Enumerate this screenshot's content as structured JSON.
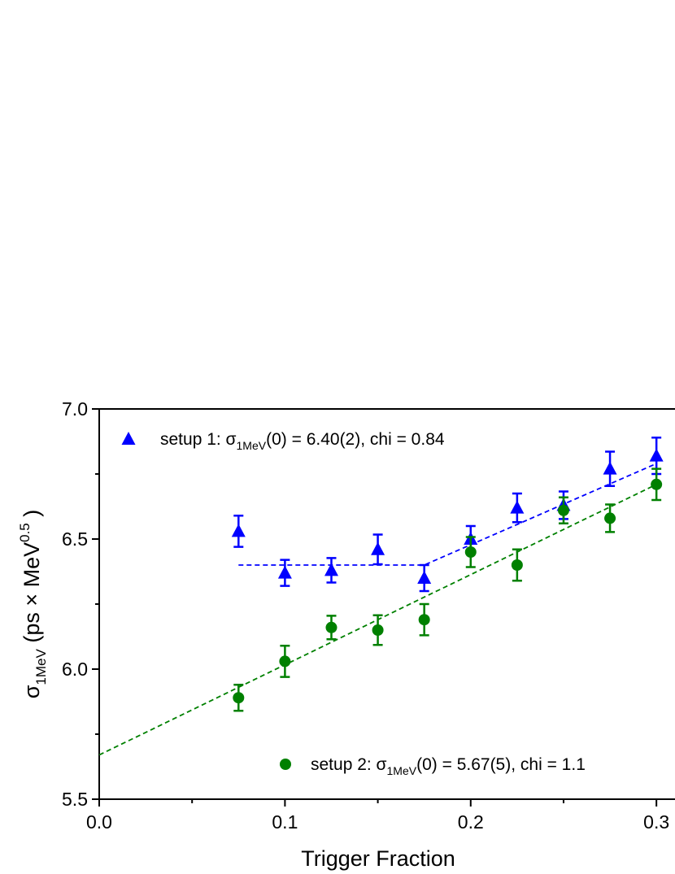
{
  "chart_data": {
    "type": "scatter",
    "xlabel": "Trigger Fraction",
    "ylabel": [
      "σ",
      "1MeV",
      " (ps × MeV",
      "0.5",
      " )"
    ],
    "xlim": [
      0,
      0.31
    ],
    "ylim": [
      5.5,
      7.0
    ],
    "xticks": [
      {
        "value": 0,
        "label": "0.0"
      },
      0.1,
      0.2,
      0.3
    ],
    "yticks": [
      5.5,
      {
        "value": 6,
        "label": "6.0"
      },
      6.5,
      {
        "value": 7,
        "label": "7.0"
      }
    ],
    "xminor": [
      0.05,
      0.15,
      0.25
    ],
    "yminor": [
      5.75,
      6.25,
      6.75
    ],
    "series": [
      {
        "name": [
          "setup 1: σ",
          "1MeV",
          "(0) = 6.40(2),  chi = 0.84"
        ],
        "color": "#0000ff",
        "marker": "triangle",
        "x": [
          0.075,
          0.1,
          0.125,
          0.15,
          0.175,
          0.2,
          0.225,
          0.25,
          0.275,
          0.3
        ],
        "values": [
          6.53,
          6.37,
          6.38,
          6.46,
          6.35,
          6.5,
          6.62,
          6.63,
          6.77,
          6.82
        ],
        "errors": [
          0.06,
          0.05,
          0.047,
          0.057,
          0.05,
          0.05,
          0.055,
          0.053,
          0.066,
          0.07
        ]
      },
      {
        "name": [
          "setup 2: σ",
          "1MeV",
          "(0) = 5.67(5),  chi = 1.1"
        ],
        "color": "#008000",
        "marker": "circle",
        "x": [
          0.075,
          0.1,
          0.125,
          0.15,
          0.175,
          0.2,
          0.225,
          0.25,
          0.275,
          0.3
        ],
        "values": [
          5.89,
          6.03,
          6.16,
          6.15,
          6.19,
          6.45,
          6.4,
          6.61,
          6.58,
          6.71
        ],
        "errors": [
          0.05,
          0.06,
          0.045,
          0.057,
          0.06,
          0.058,
          0.06,
          0.05,
          0.053,
          0.06
        ]
      }
    ],
    "fits": [
      {
        "color": "#0000ff",
        "x": [
          0.075,
          0.175,
          0.3
        ],
        "values": [
          6.4,
          6.4,
          6.79
        ]
      },
      {
        "color": "#008000",
        "x": [
          0,
          0.3
        ],
        "values": [
          5.67,
          6.71
        ]
      }
    ]
  }
}
